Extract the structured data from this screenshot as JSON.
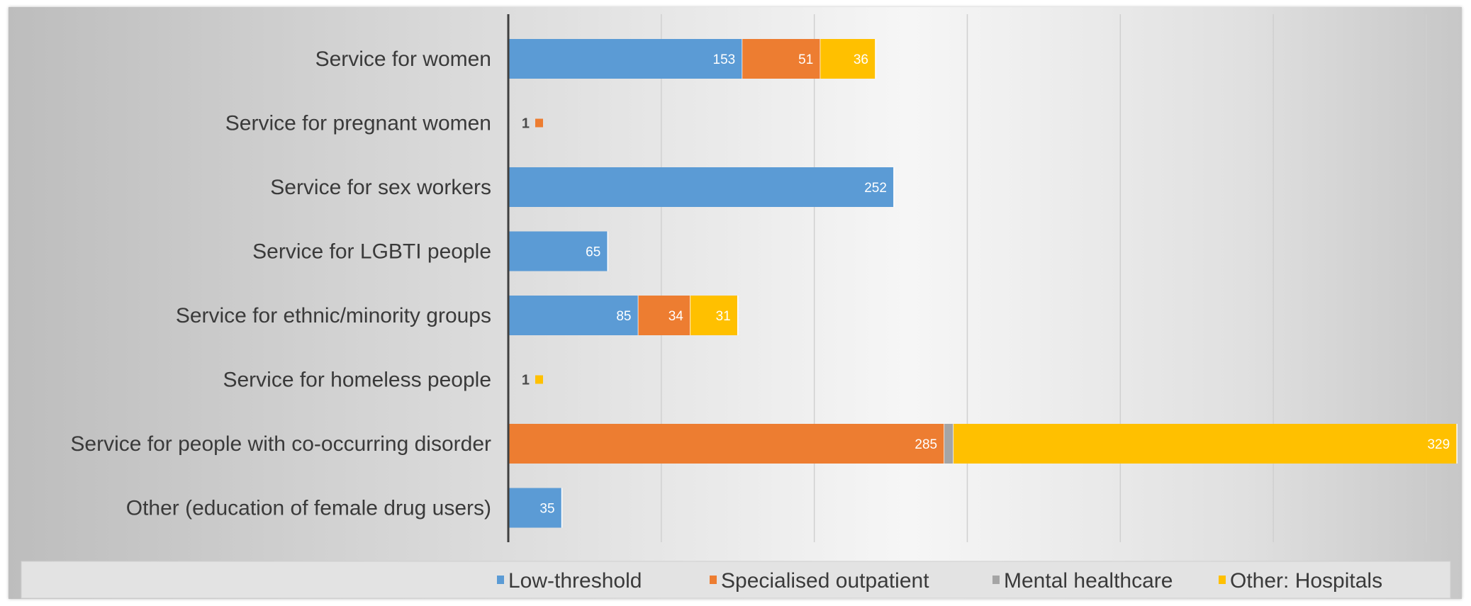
{
  "chart_data": {
    "type": "bar",
    "orientation": "horizontal",
    "stacked": true,
    "categories": [
      "Service for women",
      "Service for pregnant women",
      "Service for sex workers",
      "Service for LGBTI people",
      "Service for ethnic/minority groups",
      "Service for homeless people",
      "Service for people with co-occurring disorder",
      "Other (education of female drug users)"
    ],
    "series": [
      {
        "name": "Low-threshold",
        "color": "#5b9bd5",
        "values": [
          153,
          0,
          252,
          65,
          85,
          0,
          0,
          35
        ]
      },
      {
        "name": "Specialised outpatient",
        "color": "#ed7d31",
        "values": [
          51,
          1,
          0,
          0,
          34,
          0,
          285,
          0
        ]
      },
      {
        "name": "Mental healthcare",
        "color": "#a5a5a5",
        "values": [
          0,
          0,
          0,
          0,
          0,
          0,
          6,
          0
        ]
      },
      {
        "name": "Other: Hospitals",
        "color": "#ffc000",
        "values": [
          36,
          0,
          0,
          0,
          31,
          1,
          329,
          0
        ]
      }
    ],
    "xlim": [
      0,
      600
    ],
    "grid": true,
    "legend": "bottom",
    "title": "",
    "xlabel": "",
    "ylabel": ""
  }
}
